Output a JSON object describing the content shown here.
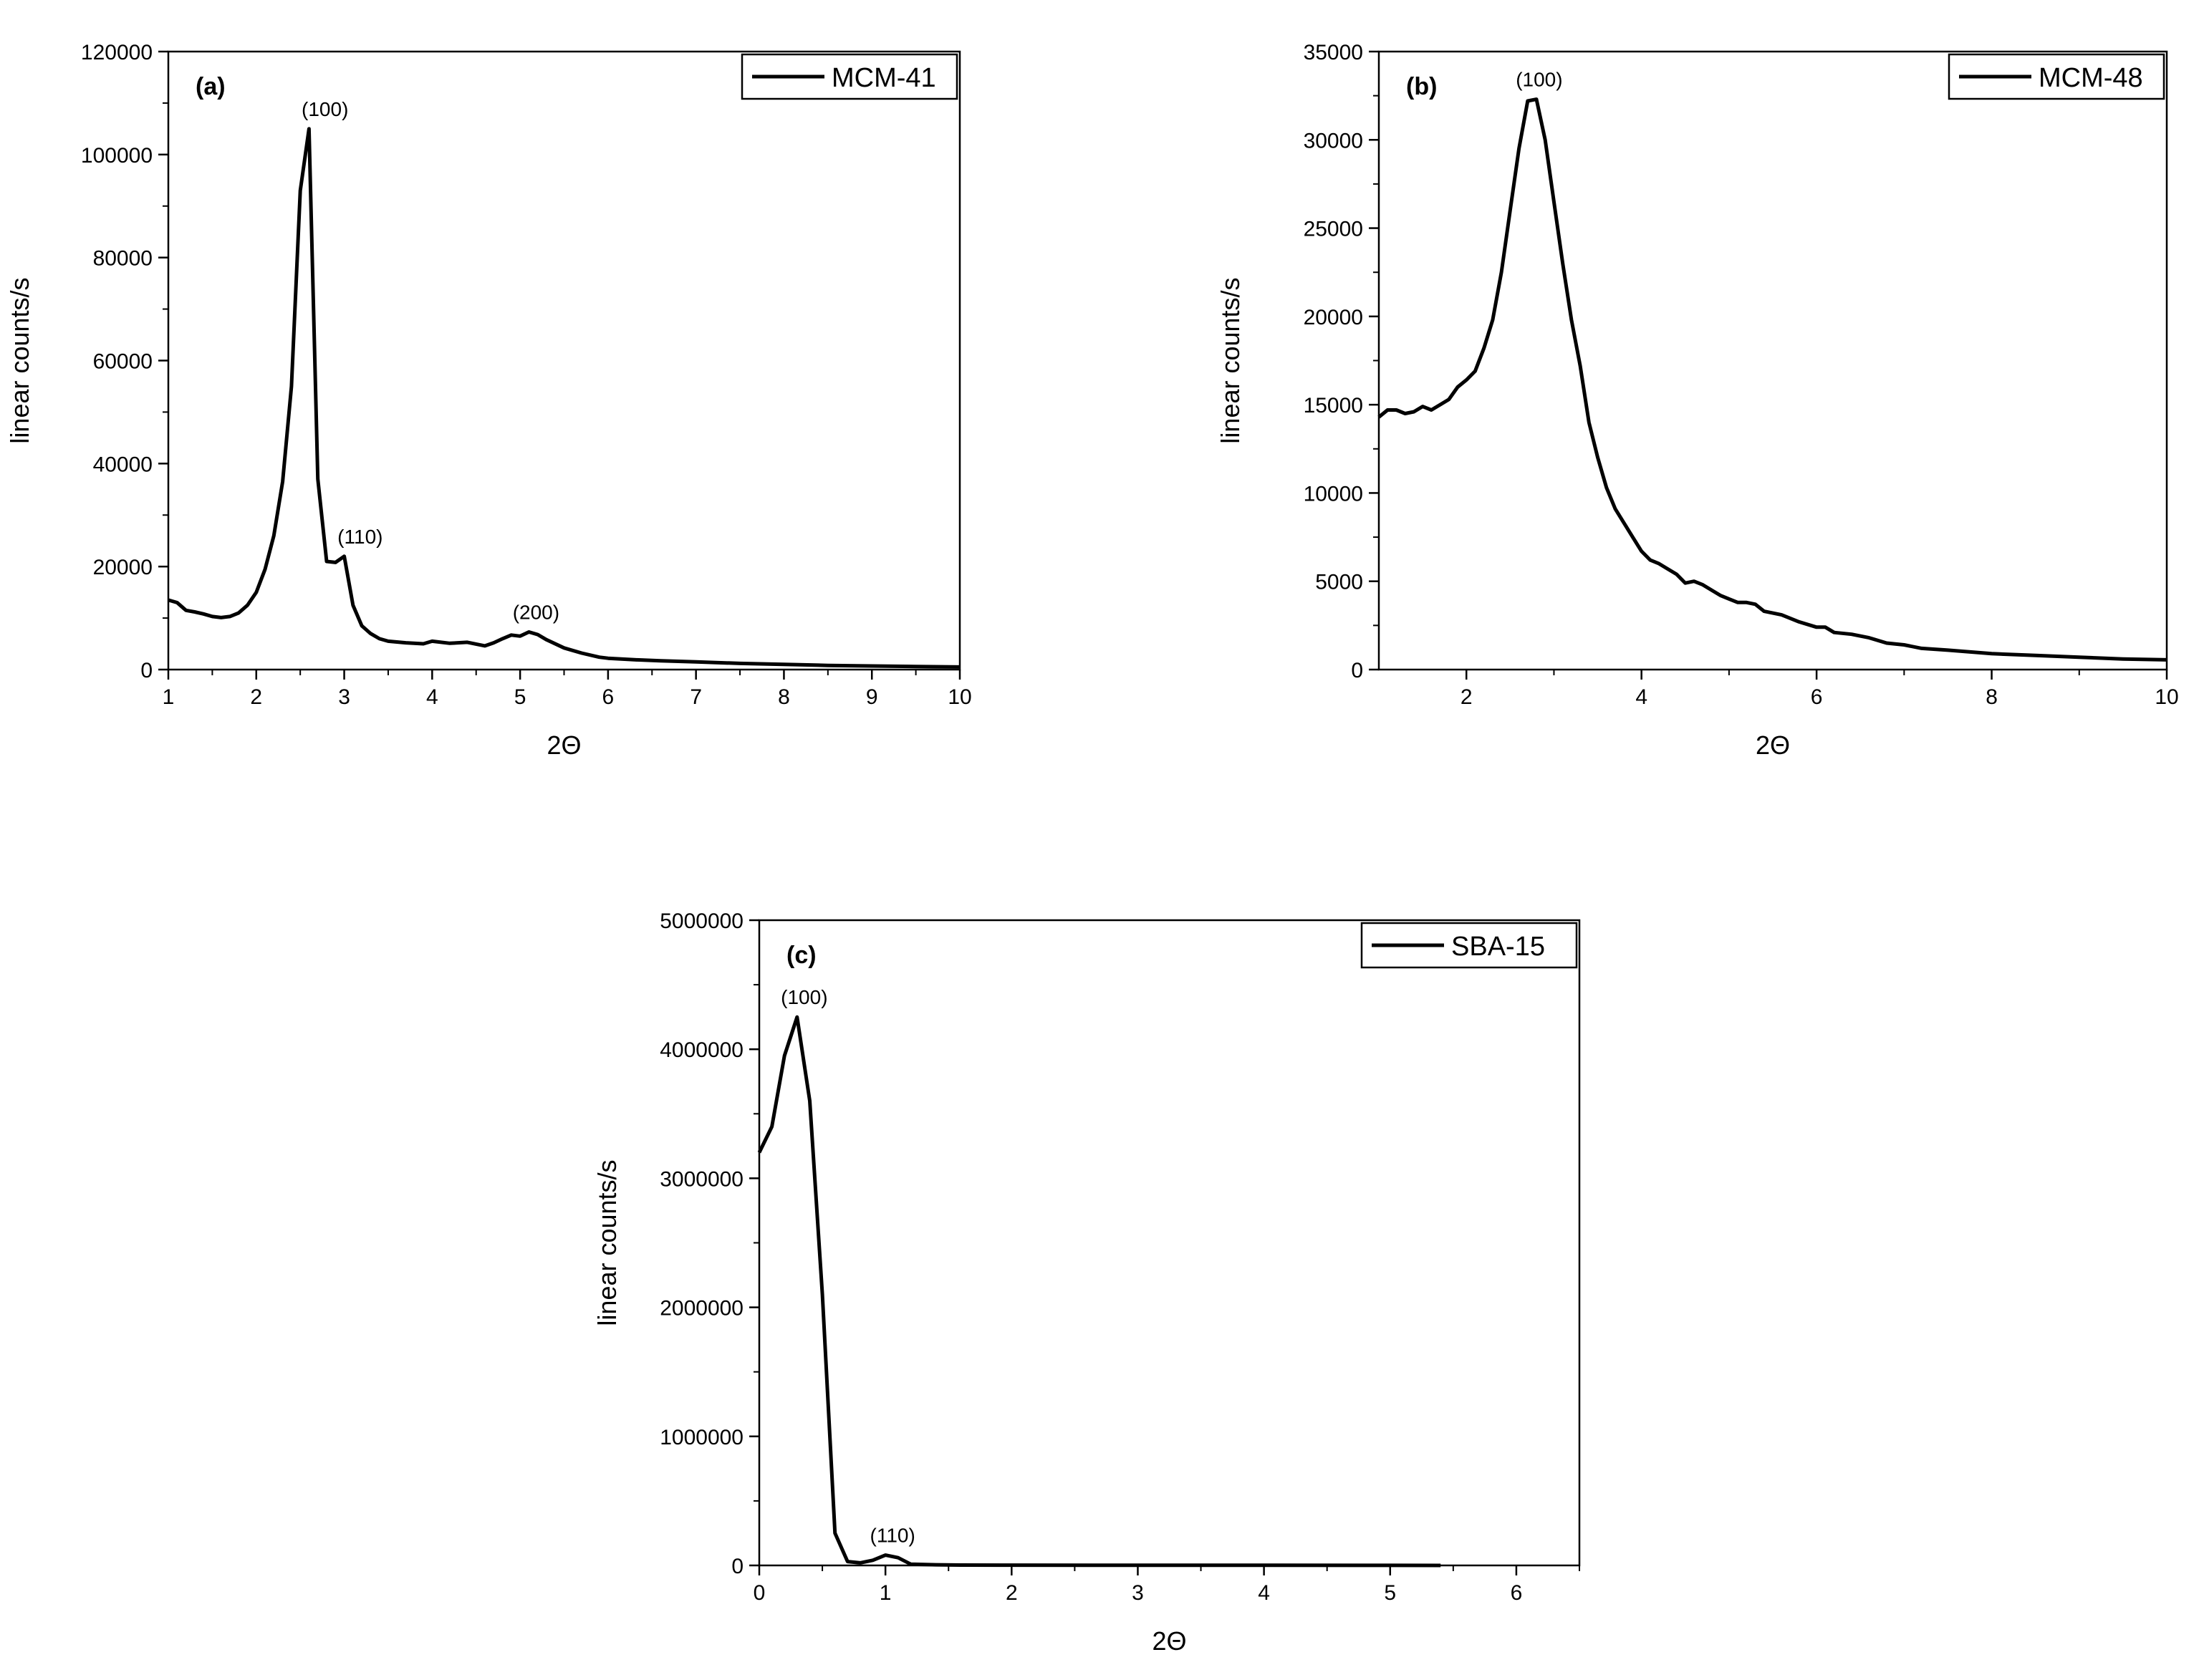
{
  "chart_data": [
    {
      "type": "line",
      "panel_label": "(a)",
      "xlabel": "2Θ",
      "ylabel": "linear counts/s",
      "xlim": [
        1,
        10
      ],
      "ylim": [
        0,
        120000
      ],
      "xticks": [
        "1",
        "2",
        "3",
        "4",
        "5",
        "6",
        "7",
        "8",
        "9",
        "10"
      ],
      "yticks": [
        "0",
        "20000",
        "40000",
        "60000",
        "80000",
        "100000",
        "120000"
      ],
      "legend_position": "top-right",
      "grid": false,
      "series": [
        {
          "name": "MCM-41",
          "color": "#000000",
          "x": [
            1.0,
            1.1,
            1.2,
            1.3,
            1.4,
            1.5,
            1.6,
            1.7,
            1.8,
            1.9,
            2.0,
            2.1,
            2.2,
            2.3,
            2.4,
            2.5,
            2.6,
            2.7,
            2.8,
            2.9,
            3.0,
            3.1,
            3.2,
            3.3,
            3.4,
            3.5,
            3.7,
            3.9,
            4.0,
            4.2,
            4.4,
            4.6,
            4.7,
            4.8,
            4.9,
            5.0,
            5.1,
            5.2,
            5.3,
            5.5,
            5.7,
            5.9,
            6.0,
            6.3,
            6.6,
            7.0,
            7.5,
            8.0,
            8.5,
            9.0,
            9.5,
            10.0
          ],
          "y": [
            13500,
            13000,
            11500,
            11200,
            10800,
            10300,
            10100,
            10300,
            11000,
            12500,
            15000,
            19500,
            26000,
            36500,
            55000,
            93000,
            105000,
            37000,
            21000,
            20800,
            22000,
            12500,
            8500,
            7000,
            6000,
            5500,
            5200,
            5000,
            5500,
            5100,
            5300,
            4600,
            5200,
            6000,
            6700,
            6500,
            7300,
            6800,
            5800,
            4200,
            3200,
            2400,
            2200,
            1900,
            1700,
            1500,
            1200,
            1000,
            800,
            700,
            600,
            500
          ]
        }
      ],
      "annotations": [
        {
          "text": "(100)",
          "x": 2.7,
          "y": 105000
        },
        {
          "text": "(110)",
          "x": 3.1,
          "y": 22000
        },
        {
          "text": "(200)",
          "x": 5.1,
          "y": 7300
        }
      ]
    },
    {
      "type": "line",
      "panel_label": "(b)",
      "xlabel": "2Θ",
      "ylabel": "linear counts/s",
      "xlim": [
        1,
        10
      ],
      "ylim": [
        0,
        35000
      ],
      "xticks": [
        "2",
        "4",
        "6",
        "8",
        "10"
      ],
      "yticks": [
        "0",
        "5000",
        "10000",
        "15000",
        "20000",
        "25000",
        "30000",
        "35000"
      ],
      "legend_position": "top-right",
      "grid": false,
      "series": [
        {
          "name": "MCM-48",
          "color": "#000000",
          "x": [
            1.0,
            1.1,
            1.2,
            1.3,
            1.4,
            1.5,
            1.6,
            1.7,
            1.8,
            1.9,
            2.0,
            2.1,
            2.2,
            2.3,
            2.4,
            2.5,
            2.6,
            2.7,
            2.8,
            2.9,
            3.0,
            3.1,
            3.2,
            3.3,
            3.4,
            3.5,
            3.6,
            3.7,
            3.8,
            3.9,
            4.0,
            4.1,
            4.2,
            4.3,
            4.4,
            4.5,
            4.6,
            4.7,
            4.8,
            4.9,
            5.0,
            5.1,
            5.2,
            5.3,
            5.4,
            5.5,
            5.6,
            5.8,
            6.0,
            6.1,
            6.2,
            6.4,
            6.6,
            6.8,
            7.0,
            7.2,
            7.5,
            8.0,
            8.5,
            9.0,
            9.5,
            10.0
          ],
          "y": [
            14300,
            14700,
            14700,
            14500,
            14600,
            14900,
            14700,
            15000,
            15300,
            16000,
            16400,
            16900,
            18200,
            19800,
            22500,
            26000,
            29500,
            32200,
            32300,
            30000,
            26500,
            23000,
            19800,
            17200,
            14000,
            12000,
            10300,
            9100,
            8300,
            7500,
            6700,
            6200,
            6000,
            5700,
            5400,
            4900,
            5000,
            4800,
            4500,
            4200,
            4000,
            3800,
            3800,
            3700,
            3300,
            3200,
            3100,
            2700,
            2400,
            2400,
            2100,
            2000,
            1800,
            1500,
            1400,
            1200,
            1100,
            900,
            800,
            700,
            600,
            550
          ]
        }
      ],
      "annotations": [
        {
          "text": "(100)",
          "x": 2.75,
          "y": 32300
        }
      ]
    },
    {
      "type": "line",
      "panel_label": "(c)",
      "xlabel": "2Θ",
      "ylabel": "linear counts/s",
      "xlim": [
        0,
        6.5
      ],
      "ylim": [
        0,
        5000000
      ],
      "xticks": [
        "0",
        "1",
        "2",
        "3",
        "4",
        "5",
        "6"
      ],
      "yticks": [
        "0",
        "1000000",
        "2000000",
        "3000000",
        "4000000",
        "5000000"
      ],
      "legend_position": "top-right",
      "grid": false,
      "series": [
        {
          "name": "SBA-15",
          "color": "#000000",
          "x": [
            0.0,
            0.1,
            0.2,
            0.3,
            0.4,
            0.5,
            0.6,
            0.7,
            0.8,
            0.9,
            1.0,
            1.1,
            1.2,
            1.4,
            1.6,
            2.0,
            3.0,
            4.0,
            5.0,
            5.4
          ],
          "y": [
            3200000,
            3400000,
            3950000,
            4250000,
            3600000,
            2100000,
            250000,
            30000,
            20000,
            40000,
            80000,
            60000,
            10000,
            5000,
            3000,
            2000,
            1000,
            1000,
            500,
            0
          ]
        }
      ],
      "annotations": [
        {
          "text": "(100)",
          "x": 0.3,
          "y": 4250000
        },
        {
          "text": "(110)",
          "x": 1.0,
          "y": 80000
        }
      ]
    }
  ]
}
